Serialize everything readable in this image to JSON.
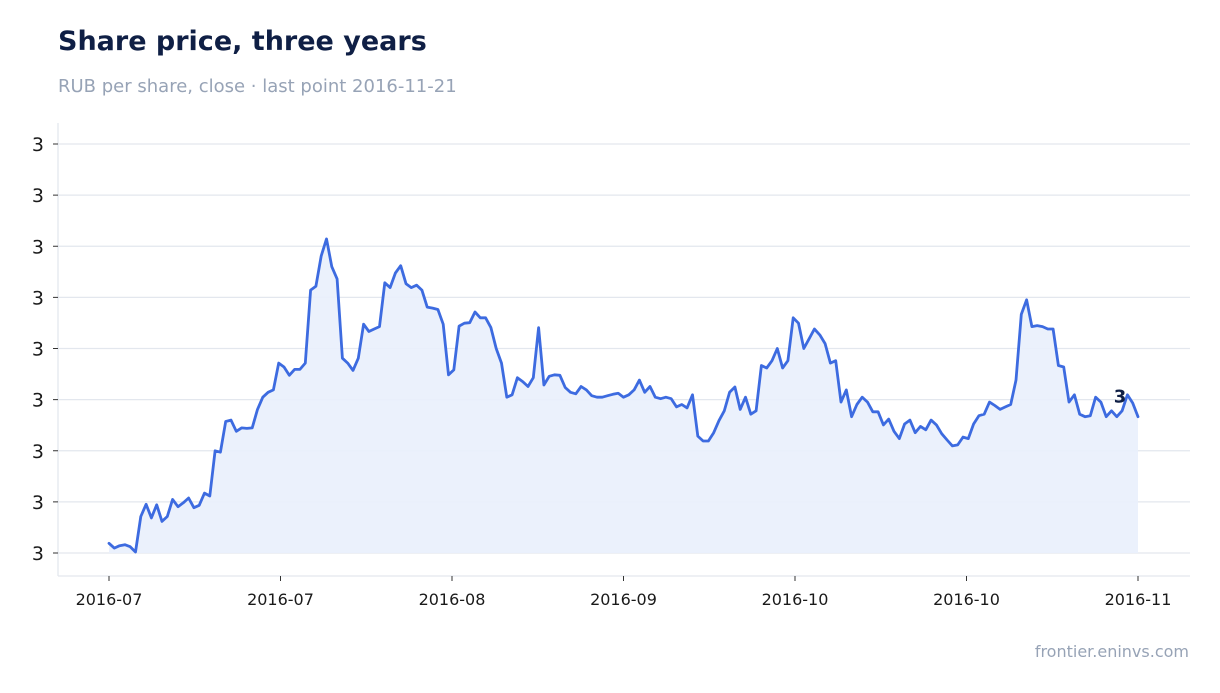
{
  "header": {
    "title": "Share price, three years",
    "subtitle": "RUB per share, close · last point 2016-11-21"
  },
  "footer": {
    "source": "frontier.eninvs.com"
  },
  "colors": {
    "line": "#3d6be0",
    "fill": "#e9effc",
    "grid": "#e3e7ee",
    "text": "#1a1a1a",
    "title": "#0f1f45",
    "muted": "#97a3b6"
  },
  "chart_data": {
    "type": "area",
    "title": "Share price, three years",
    "subtitle": "RUB per share, close · last point 2016-11-21",
    "xlabel": "",
    "ylabel": "",
    "x_tick_labels": [
      "2016-07",
      "2016-07",
      "2016-08",
      "2016-09",
      "2016-10",
      "2016-10",
      "2016-11"
    ],
    "y_tick_labels": [
      "3",
      "3",
      "3",
      "3",
      "3",
      "3",
      "3",
      "3",
      "3"
    ],
    "ylim": [
      2.58,
      3.42
    ],
    "grid": true,
    "legend": "none",
    "last_label": "3",
    "values": [
      2.6,
      2.59,
      2.595,
      2.597,
      2.593,
      2.582,
      2.655,
      2.68,
      2.652,
      2.679,
      2.645,
      2.655,
      2.69,
      2.675,
      2.683,
      2.693,
      2.673,
      2.678,
      2.703,
      2.697,
      2.79,
      2.787,
      2.85,
      2.853,
      2.83,
      2.837,
      2.836,
      2.837,
      2.875,
      2.9,
      2.91,
      2.915,
      2.97,
      2.962,
      2.945,
      2.957,
      2.957,
      2.97,
      3.12,
      3.128,
      3.19,
      3.225,
      3.168,
      3.143,
      2.98,
      2.97,
      2.955,
      2.98,
      3.05,
      3.035,
      3.04,
      3.045,
      3.135,
      3.125,
      3.155,
      3.17,
      3.133,
      3.125,
      3.13,
      3.12,
      3.085,
      3.083,
      3.08,
      3.05,
      2.946,
      2.956,
      3.046,
      3.052,
      3.053,
      3.075,
      3.063,
      3.063,
      3.043,
      3.0,
      2.97,
      2.9,
      2.905,
      2.94,
      2.932,
      2.922,
      2.94,
      3.043,
      2.925,
      2.943,
      2.946,
      2.945,
      2.92,
      2.91,
      2.907,
      2.922,
      2.915,
      2.903,
      2.9,
      2.9,
      2.903,
      2.906,
      2.908,
      2.9,
      2.905,
      2.915,
      2.935,
      2.91,
      2.922,
      2.9,
      2.897,
      2.9,
      2.897,
      2.88,
      2.885,
      2.878,
      2.905,
      2.82,
      2.81,
      2.81,
      2.827,
      2.852,
      2.872,
      2.91,
      2.921,
      2.875,
      2.9,
      2.865,
      2.872,
      2.965,
      2.96,
      2.975,
      3.0,
      2.96,
      2.975,
      3.063,
      3.052,
      3.0,
      3.02,
      3.04,
      3.028,
      3.01,
      2.97,
      2.975,
      2.89,
      2.915,
      2.86,
      2.885,
      2.9,
      2.89,
      2.87,
      2.87,
      2.843,
      2.855,
      2.83,
      2.815,
      2.845,
      2.853,
      2.827,
      2.84,
      2.833,
      2.853,
      2.843,
      2.825,
      2.812,
      2.8,
      2.802,
      2.818,
      2.815,
      2.845,
      2.862,
      2.865,
      2.89,
      2.883,
      2.875,
      2.88,
      2.885,
      2.935,
      3.07,
      3.1,
      3.045,
      3.047,
      3.045,
      3.04,
      3.04,
      2.965,
      2.962,
      2.89,
      2.905,
      2.865,
      2.86,
      2.862,
      2.9,
      2.89,
      2.86,
      2.872,
      2.86,
      2.872,
      2.905,
      2.888,
      2.86
    ],
    "area_baseline": 2.58
  }
}
